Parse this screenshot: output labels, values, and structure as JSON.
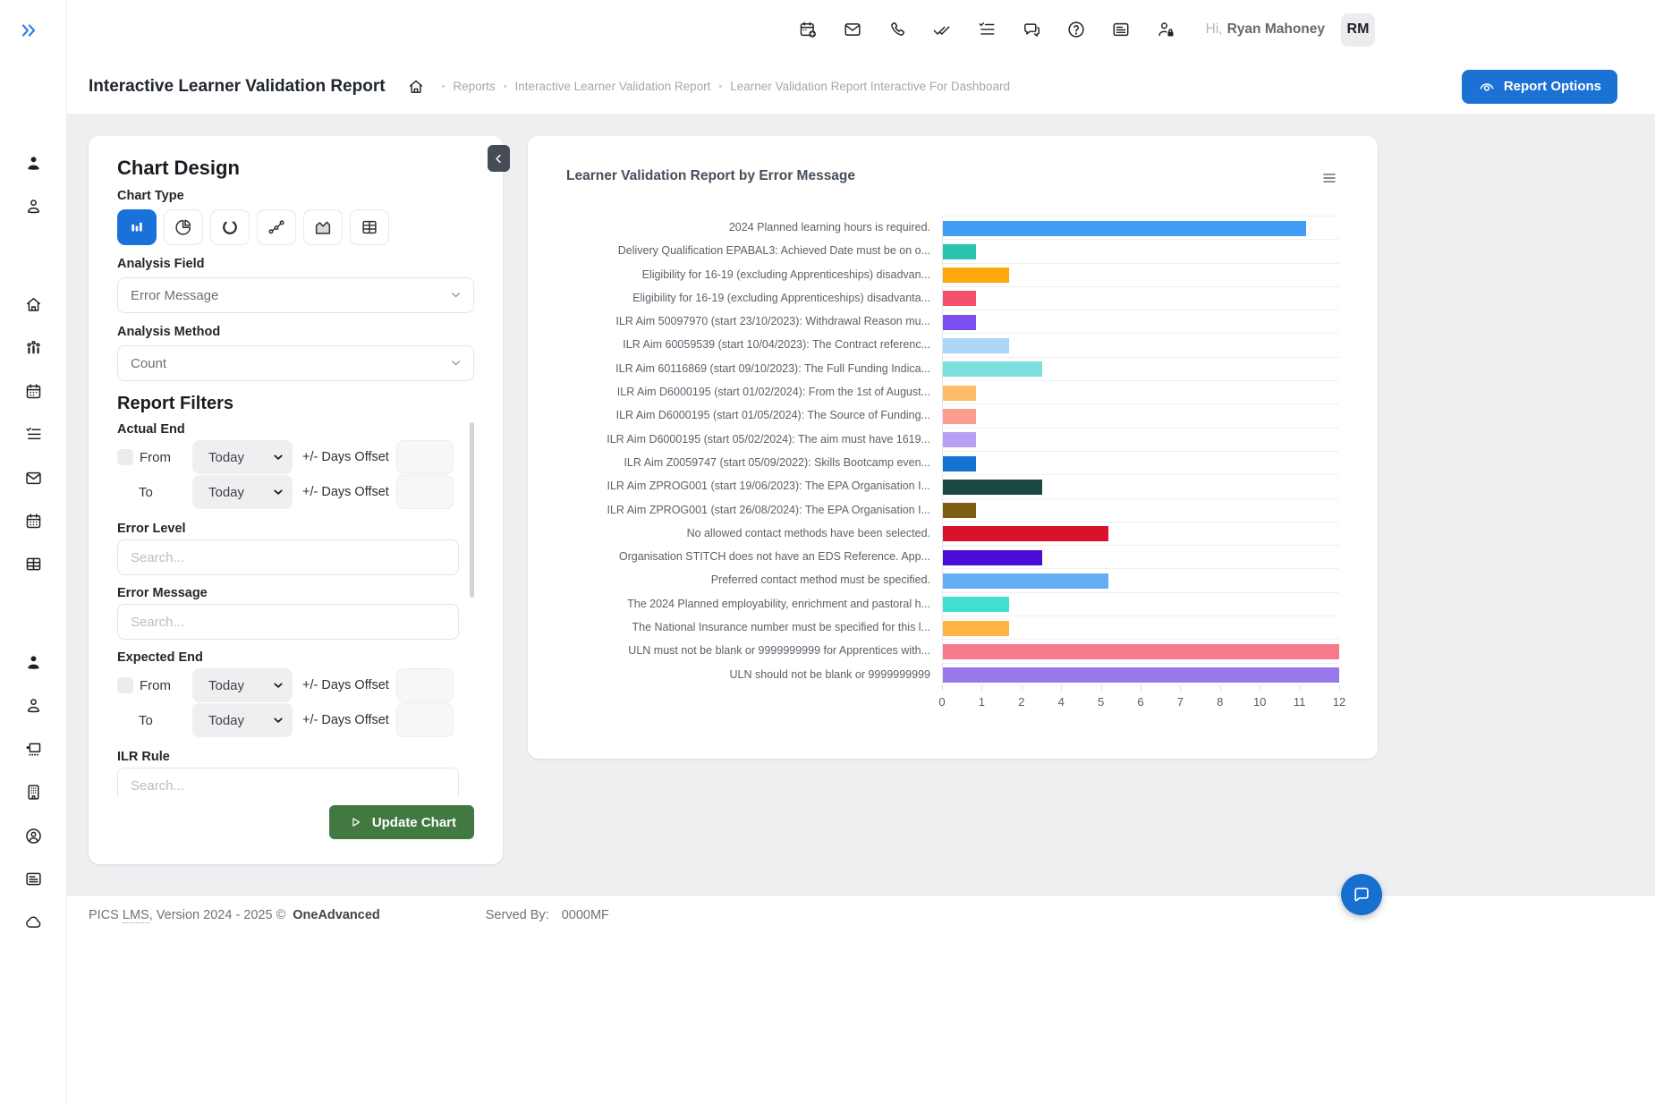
{
  "topbar": {
    "icons": [
      "calendar-plus",
      "mail",
      "phone",
      "double-check",
      "checklist",
      "chat",
      "help-circle",
      "news",
      "user-lock"
    ],
    "greeting_prefix": "Hi,",
    "user_name": "Ryan Mahoney",
    "avatar_initials": "RM"
  },
  "breadcrumb_bar": {
    "page_title": "Interactive Learner Validation Report",
    "crumbs": [
      "Reports",
      "Interactive Learner Validation Report",
      "Learner Validation Report Interactive For Dashboard"
    ],
    "report_options_label": "Report Options"
  },
  "sidebar": {
    "groups": [
      [
        "user-filled",
        "user-outline"
      ],
      [
        "home",
        "bar-line-chart",
        "calendar",
        "checklist",
        "mail",
        "calendar-dots",
        "table"
      ],
      [
        "user-filled",
        "user-outline",
        "presentation",
        "building",
        "user-circle",
        "news",
        "cloud"
      ]
    ]
  },
  "chart_design": {
    "title": "Chart Design",
    "chart_type_label": "Chart Type",
    "chart_types": [
      {
        "icon": "bar-chart",
        "selected": true
      },
      {
        "icon": "pie-chart",
        "selected": false
      },
      {
        "icon": "donut-chart",
        "selected": false
      },
      {
        "icon": "line-chart",
        "selected": false
      },
      {
        "icon": "area-chart",
        "selected": false
      },
      {
        "icon": "table-chart",
        "selected": false
      }
    ],
    "analysis_field_label": "Analysis Field",
    "analysis_field_value": "Error Message",
    "analysis_method_label": "Analysis Method",
    "analysis_method_value": "Count",
    "filters_title": "Report Filters",
    "filters": {
      "actual_end_label": "Actual End",
      "expected_end_label": "Expected End",
      "from_label": "From",
      "to_label": "To",
      "date_value": "Today",
      "offset_label": "+/- Days Offset",
      "error_level_label": "Error Level",
      "error_message_label": "Error Message",
      "ilr_rule_label": "ILR Rule",
      "search_placeholder": "Search..."
    },
    "update_button_label": "Update Chart"
  },
  "chart_panel": {
    "title": "Learner Validation Report by Error Message"
  },
  "chart_data": {
    "type": "bar",
    "orientation": "horizontal",
    "title": "Learner Validation Report by Error Message",
    "categories": [
      "2024 Planned learning hours is required.",
      "Delivery Qualification EPABAL3: Achieved Date must be on o...",
      "Eligibility for 16-19 (excluding Apprenticeships) disadvan...",
      "Eligibility for 16-19 (excluding Apprenticeships) disadvanta...",
      "ILR Aim 50097970 (start 23/10/2023): Withdrawal Reason mu...",
      "ILR Aim 60059539 (start 10/04/2023): The Contract referenc...",
      "ILR Aim 60116869 (start 09/10/2023): The Full Funding Indica...",
      "ILR Aim D6000195 (start 01/02/2024): From the 1st of August...",
      "ILR Aim D6000195 (start 01/05/2024): The Source of Funding...",
      "ILR Aim D6000195 (start 05/02/2024): The aim must have 1619...",
      "ILR Aim Z0059747 (start 05/09/2022): Skills Bootcamp even...",
      "ILR Aim ZPROG001 (start 19/06/2023): The EPA Organisation I...",
      "ILR Aim ZPROG001 (start 26/08/2024): The EPA Organisation I...",
      "No allowed contact methods have been selected.",
      "Organisation STITCH does not have an EDS Reference. App...",
      "Preferred contact method must be specified.",
      "The 2024 Planned employability, enrichment and pastoral h...",
      "The National Insurance number must be specified for this l...",
      "ULN must not be blank or 9999999999 for Apprentices with...",
      "ULN should not be blank or 9999999999"
    ],
    "values": [
      11,
      1,
      2,
      1,
      1,
      2,
      3,
      1,
      1,
      1,
      1,
      3,
      1,
      5,
      3,
      5,
      2,
      2,
      12,
      12
    ],
    "colors": [
      "#3F9EF3",
      "#2BC4AE",
      "#FFA70B",
      "#F4516C",
      "#7C4FF0",
      "#ABD6F8",
      "#79E0DB",
      "#FFBD69",
      "#FB9E90",
      "#B7A1F5",
      "#1473D1",
      "#1C4844",
      "#7E5E11",
      "#D9112B",
      "#4A0CD6",
      "#63ADF2",
      "#41E0CE",
      "#FFB340",
      "#F7798C",
      "#9878EB"
    ],
    "xlim": [
      0,
      12
    ],
    "x_ticks": [
      "0",
      "1",
      "2",
      "4",
      "5",
      "6",
      "7",
      "8",
      "10",
      "11",
      "12"
    ],
    "grid": true,
    "legend": false
  },
  "footer": {
    "brand": "PICS",
    "brand_abbr": "LMS",
    "version_text": ", Version 2024 - 2025 ©",
    "company": "OneAdvanced",
    "served_by_label": "Served By:",
    "served_by_value": "0000MF"
  },
  "colors": {
    "accent_blue": "#1b72d4",
    "selected_chart_type": "#1872d9",
    "update_green": "#417941",
    "fab_blue": "#176fd0"
  }
}
